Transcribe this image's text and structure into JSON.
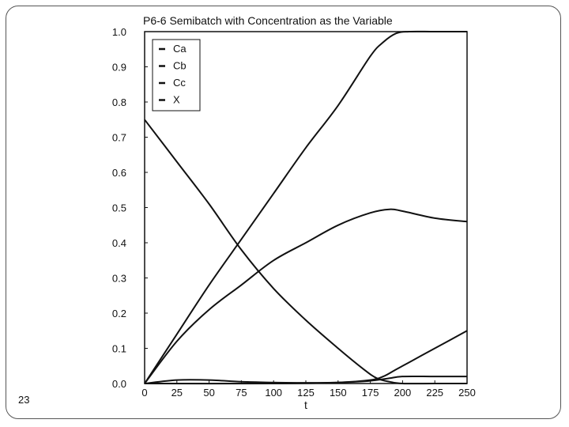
{
  "slide": {
    "number": "23"
  },
  "chart_data": {
    "type": "line",
    "title": "P6-6 Semibatch with Concentration as the Variable",
    "xlabel": "t",
    "ylabel": "",
    "xlim": [
      0,
      250
    ],
    "ylim": [
      0,
      1.0
    ],
    "xticks": [
      "0",
      "25",
      "50",
      "75",
      "100",
      "125",
      "150",
      "175",
      "200",
      "225",
      "250"
    ],
    "yticks": [
      "0.0",
      "0.1",
      "0.2",
      "0.3",
      "0.4",
      "0.5",
      "0.6",
      "0.7",
      "0.8",
      "0.9",
      "1.0"
    ],
    "grid": false,
    "legend_position": "top-left",
    "series": [
      {
        "name": "Ca",
        "x": [
          0,
          25,
          50,
          75,
          100,
          125,
          150,
          170,
          180,
          190,
          200,
          225,
          250
        ],
        "y": [
          0.75,
          0.63,
          0.51,
          0.38,
          0.27,
          0.18,
          0.1,
          0.04,
          0.015,
          0.005,
          0.0,
          0.0,
          0.0
        ]
      },
      {
        "name": "Cb",
        "x": [
          0,
          25,
          50,
          75,
          100,
          125,
          150,
          170,
          180,
          190,
          200,
          225,
          250
        ],
        "y": [
          0.0,
          0.01,
          0.01,
          0.005,
          0.003,
          0.002,
          0.003,
          0.006,
          0.01,
          0.015,
          0.02,
          0.02,
          0.02
        ]
      },
      {
        "name": "Cc",
        "x": [
          0,
          25,
          50,
          75,
          100,
          125,
          150,
          175,
          190,
          200,
          225,
          250
        ],
        "y": [
          0.0,
          0.12,
          0.21,
          0.28,
          0.35,
          0.4,
          0.45,
          0.485,
          0.495,
          0.49,
          0.47,
          0.46
        ]
      },
      {
        "name": "X",
        "x": [
          0,
          25,
          50,
          75,
          100,
          125,
          150,
          175,
          185,
          195,
          205,
          225,
          250
        ],
        "y": [
          0.0,
          0.14,
          0.28,
          0.41,
          0.54,
          0.67,
          0.79,
          0.93,
          0.97,
          0.995,
          1.0,
          1.0,
          1.0
        ]
      },
      {
        "name": "",
        "x": [
          0,
          100,
          150,
          175,
          185,
          195,
          210,
          225,
          250
        ],
        "y": [
          0.0,
          0.0,
          0.003,
          0.01,
          0.02,
          0.04,
          0.07,
          0.1,
          0.15
        ]
      }
    ]
  }
}
